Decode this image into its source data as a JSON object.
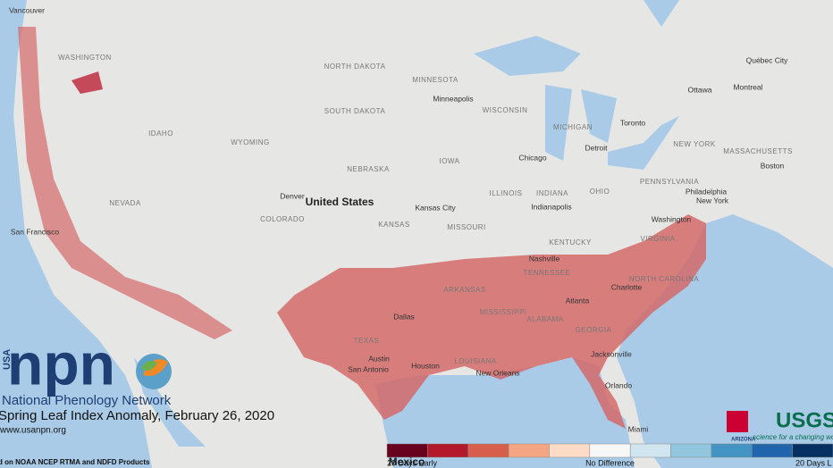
{
  "map": {
    "countries": [
      "United States",
      "Mexico"
    ],
    "states": [
      "WASHINGTON",
      "IDAHO",
      "WYOMING",
      "NEVADA",
      "COLORADO",
      "NORTH DAKOTA",
      "SOUTH DAKOTA",
      "NEBRASKA",
      "KANSAS",
      "TEXAS",
      "MINNESOTA",
      "WISCONSIN",
      "IOWA",
      "MISSOURI",
      "ILLINOIS",
      "INDIANA",
      "OHIO",
      "MICHIGAN",
      "PENNSYLVANIA",
      "NEW YORK",
      "KENTUCKY",
      "TENNESSEE",
      "ARKANSAS",
      "MISSISSIPPI",
      "ALABAMA",
      "GEORGIA",
      "LOUISIANA",
      "NORTH CAROLINA",
      "VIRGINIA",
      "MASSACHUSETTS"
    ],
    "cities": [
      "Vancouver",
      "Minneapolis",
      "Chicago",
      "Detroit",
      "Toronto",
      "Ottawa",
      "Montreal",
      "Québec City",
      "Boston",
      "New York",
      "Philadelphia",
      "Washington",
      "Denver",
      "Kansas City",
      "Indianapolis",
      "Nashville",
      "Atlanta",
      "Charlotte",
      "Dallas",
      "Austin",
      "San Antonio",
      "Houston",
      "New Orleans",
      "Jacksonville",
      "Orlando",
      "Miami",
      "San Francisco"
    ]
  },
  "branding": {
    "usa": "USA",
    "npn": "npn",
    "network": "National Phenology Network",
    "title": "Spring Leaf Index Anomaly, February 26, 2020",
    "url": "www.usanpn.org",
    "source": "d on NOAA NCEP RTMA and NDFD Products",
    "usgs": "USGS",
    "usgs_tagline": "science for a changing world",
    "arizona": "ARIZONA"
  },
  "legend": {
    "colors": [
      "#67001f",
      "#b2182b",
      "#d6604d",
      "#f4a582",
      "#fddbc7",
      "#f7f7f7",
      "#d1e5f0",
      "#92c5de",
      "#4393c3",
      "#2166ac",
      "#053061"
    ],
    "labels": [
      "20 Days Early",
      "No Difference",
      "20 Days L"
    ]
  }
}
